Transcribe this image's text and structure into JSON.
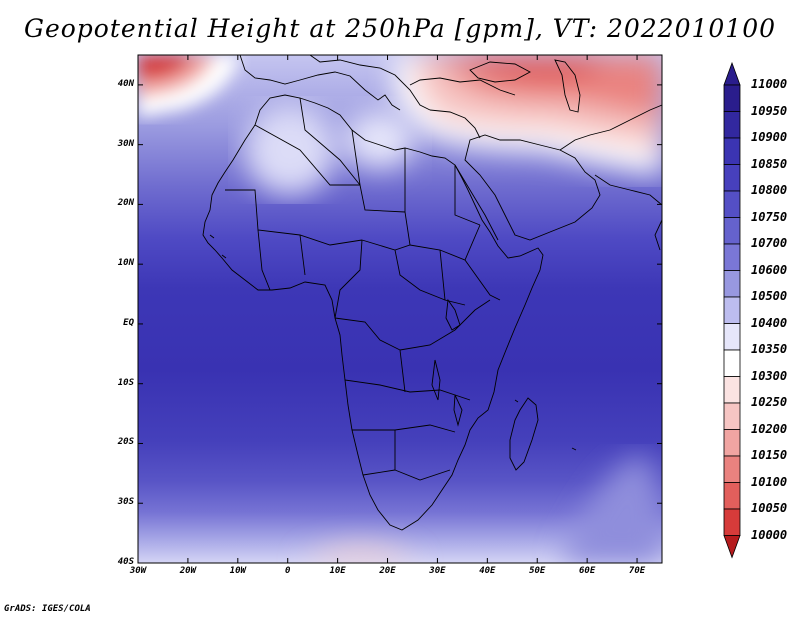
{
  "title": "Geopotential Height at 250hPa [gpm], VT: 2022010100",
  "credit": "GrADS: IGES/COLA",
  "map": {
    "lat_range": [
      -40,
      45
    ],
    "lon_range": [
      -30,
      75
    ],
    "lat_ticks": [
      {
        "lat": 40,
        "label": "40N"
      },
      {
        "lat": 30,
        "label": "30N"
      },
      {
        "lat": 20,
        "label": "20N"
      },
      {
        "lat": 10,
        "label": "10N"
      },
      {
        "lat": 0,
        "label": "EQ"
      },
      {
        "lat": -10,
        "label": "10S"
      },
      {
        "lat": -20,
        "label": "20S"
      },
      {
        "lat": -30,
        "label": "30S"
      },
      {
        "lat": -40,
        "label": "40S"
      }
    ],
    "lon_ticks": [
      {
        "lon": -30,
        "label": "30W"
      },
      {
        "lon": -20,
        "label": "20W"
      },
      {
        "lon": -10,
        "label": "10W"
      },
      {
        "lon": 0,
        "label": "0"
      },
      {
        "lon": 10,
        "label": "10E"
      },
      {
        "lon": 20,
        "label": "20E"
      },
      {
        "lon": 30,
        "label": "30E"
      },
      {
        "lon": 40,
        "label": "40E"
      },
      {
        "lon": 50,
        "label": "50E"
      },
      {
        "lon": 60,
        "label": "60E"
      },
      {
        "lon": 70,
        "label": "70E"
      }
    ]
  },
  "colorbar": {
    "levels": [
      {
        "value": "11000",
        "color": "#2a1d8c"
      },
      {
        "value": "10950",
        "color": "#32289f"
      },
      {
        "value": "10900",
        "color": "#3b34b2"
      },
      {
        "value": "10850",
        "color": "#4740bd"
      },
      {
        "value": "10800",
        "color": "#544fc5"
      },
      {
        "value": "10750",
        "color": "#6562cd"
      },
      {
        "value": "10700",
        "color": "#7a77d6"
      },
      {
        "value": "10600",
        "color": "#9898e0"
      },
      {
        "value": "10500",
        "color": "#bdbdef"
      },
      {
        "value": "10400",
        "color": "#e6e6fa"
      },
      {
        "value": "10350",
        "color": "#ffffff"
      },
      {
        "value": "10300",
        "color": "#fbe3e2"
      },
      {
        "value": "10250",
        "color": "#f6c5c3"
      },
      {
        "value": "10200",
        "color": "#f1a5a2"
      },
      {
        "value": "10150",
        "color": "#ea827f"
      },
      {
        "value": "10100",
        "color": "#e25f5c"
      },
      {
        "value": "10050",
        "color": "#d63b3a"
      },
      {
        "value": "10000",
        "color": "#c41f22"
      }
    ],
    "top_arrow_color": "#2a1d8c",
    "bottom_arrow_color": "#b51b1d"
  }
}
